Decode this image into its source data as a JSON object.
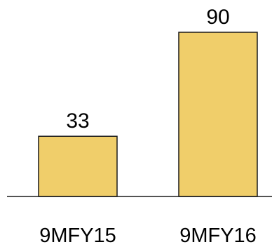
{
  "chart_data": {
    "type": "bar",
    "categories": [
      "9MFY15",
      "9MFY16"
    ],
    "values": [
      33,
      90
    ],
    "ylim": [
      0,
      90
    ],
    "grid": false,
    "colors": {
      "bar_fill": "#F0CE6A",
      "bar_stroke": "#1A1A1A",
      "axis": "#1A1A1A"
    }
  }
}
